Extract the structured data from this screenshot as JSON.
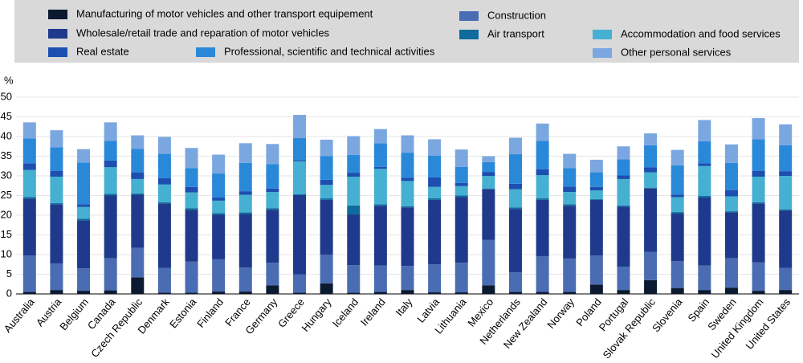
{
  "chart_data": {
    "type": "stacked_bar",
    "y_label": "%",
    "categories": [
      "Australia",
      "Austria",
      "Belgium",
      "Canada",
      "Czech Republic",
      "Denmark",
      "Estonia",
      "Finland",
      "France",
      "Germany",
      "Greece",
      "Hungary",
      "Iceland",
      "Ireland",
      "Italy",
      "Latvia",
      "Lithuania",
      "Mexico",
      "Netherlands",
      "New Zealand",
      "Norway",
      "Poland",
      "Portugal",
      "Slovak Republic",
      "Slovenia",
      "Spain",
      "Sweden",
      "United Kingdom",
      "United States"
    ],
    "series": [
      {
        "name": "Manufacturing of motor vehicles and other transport equipement",
        "color": "#0b1931",
        "values": [
          0.5,
          1.0,
          0.8,
          0.9,
          4.2,
          0.3,
          0.3,
          0.6,
          0.6,
          2.2,
          0.3,
          2.7,
          0.3,
          0.5,
          1.0,
          0.4,
          0.4,
          2.2,
          0.5,
          0.5,
          0.5,
          2.4,
          1.0,
          3.5,
          1.5,
          1.0,
          1.6,
          0.8,
          1.0
        ]
      },
      {
        "name": "Construction",
        "color": "#4a6cb3",
        "values": [
          9.3,
          6.7,
          5.7,
          8.2,
          7.5,
          6.3,
          7.9,
          8.2,
          6.1,
          5.7,
          4.7,
          7.3,
          7.0,
          6.7,
          6.1,
          7.1,
          7.5,
          11.5,
          5.0,
          9.1,
          8.5,
          7.4,
          5.9,
          7.2,
          6.8,
          6.2,
          7.5,
          7.2,
          5.6
        ]
      },
      {
        "name": "Wholesale/retail trade and reparation of motor vehicles",
        "color": "#1f3a8c",
        "values": [
          14.4,
          15.1,
          12.2,
          15.9,
          13.5,
          16.4,
          13.2,
          11.3,
          13.6,
          13.5,
          20.1,
          13.9,
          12.9,
          15.2,
          14.9,
          16.4,
          16.7,
          12.9,
          16.1,
          14.3,
          13.4,
          14.1,
          15.3,
          16.1,
          12.1,
          17.3,
          11.6,
          15.0,
          14.6
        ]
      },
      {
        "name": "Air transport",
        "color": "#0f6b9e",
        "values": [
          0.4,
          0.3,
          0.4,
          0.4,
          0.3,
          0.3,
          0.4,
          0.4,
          0.4,
          0.4,
          0.2,
          0.4,
          2.3,
          0.4,
          0.3,
          0.4,
          0.4,
          0.2,
          0.4,
          0.4,
          0.4,
          0.2,
          0.3,
          0.2,
          0.4,
          0.4,
          0.3,
          0.3,
          0.3
        ]
      },
      {
        "name": "Accommodation and food services",
        "color": "#45b0d1",
        "values": [
          6.9,
          6.7,
          3.0,
          6.8,
          3.7,
          4.5,
          4.0,
          3.2,
          4.5,
          4.1,
          8.4,
          3.4,
          7.3,
          9.0,
          6.4,
          2.9,
          2.4,
          3.2,
          4.6,
          5.9,
          3.1,
          2.2,
          6.7,
          3.9,
          3.8,
          7.6,
          3.8,
          6.5,
          8.5
        ]
      },
      {
        "name": "Real estate",
        "color": "#1c4fb0",
        "values": [
          1.7,
          1.5,
          0.7,
          1.7,
          1.7,
          1.6,
          1.4,
          0.8,
          0.9,
          0.9,
          0.3,
          1.3,
          1.0,
          0.5,
          0.8,
          2.4,
          0.8,
          1.0,
          1.4,
          1.5,
          1.4,
          0.9,
          0.9,
          1.3,
          0.6,
          0.7,
          1.6,
          1.5,
          1.2
        ]
      },
      {
        "name": "Professional, scientific and technical activities",
        "color": "#2a88d8",
        "values": [
          6.3,
          6.0,
          10.6,
          5.0,
          6.0,
          6.2,
          4.8,
          6.1,
          7.2,
          6.2,
          5.6,
          6.0,
          4.5,
          6.0,
          6.4,
          5.5,
          4.1,
          2.5,
          7.5,
          7.2,
          4.7,
          3.7,
          4.1,
          5.6,
          7.5,
          5.6,
          6.9,
          8.0,
          6.6
        ]
      },
      {
        "name": "Other personal services",
        "color": "#7ba7e0",
        "values": [
          4.1,
          4.3,
          3.4,
          4.7,
          3.4,
          4.3,
          5.1,
          4.8,
          5.0,
          5.1,
          5.9,
          4.2,
          4.8,
          3.6,
          4.4,
          4.2,
          4.4,
          1.5,
          4.2,
          4.4,
          3.6,
          3.2,
          3.3,
          3.0,
          3.9,
          5.4,
          4.7,
          5.4,
          5.3
        ]
      }
    ],
    "ylim": [
      0,
      50
    ],
    "yticks": [
      0,
      5,
      10,
      15,
      20,
      25,
      30,
      35,
      40,
      45,
      50
    ],
    "grid": true
  }
}
